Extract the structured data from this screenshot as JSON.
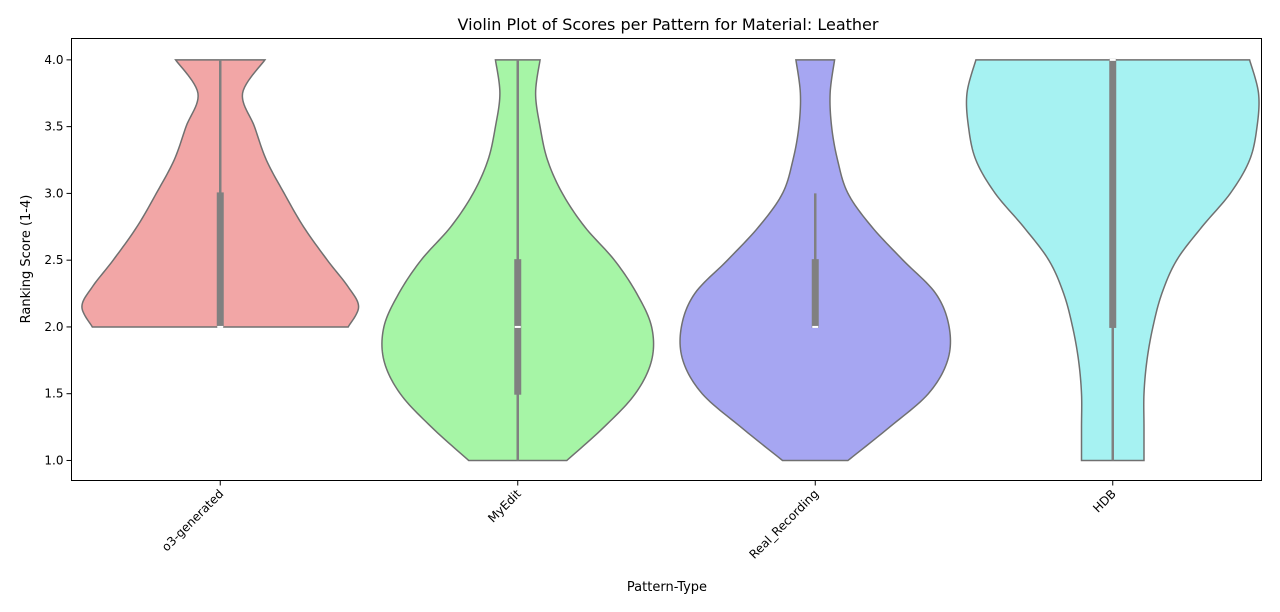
{
  "chart_data": {
    "type": "violin",
    "title": "Violin Plot of Scores per Pattern for Material: Leather",
    "xlabel": "Pattern-Type",
    "ylabel": "Ranking Score (1-4)",
    "ylim": [
      0.85,
      4.16
    ],
    "yticks": [
      "1.0",
      "1.5",
      "2.0",
      "2.5",
      "3.0",
      "3.5",
      "4.0"
    ],
    "categories": [
      "o3-generated",
      "MyEdit",
      "Real_Recording",
      "HDB"
    ],
    "colors": [
      "#f2a6a6",
      "#a6f5a6",
      "#a6a6f2",
      "#a6f2f2"
    ],
    "edge_color": "#707070",
    "box_color": "#808080",
    "violins": [
      {
        "name": "o3-generated",
        "median": 2.0,
        "q1": 2.0,
        "q3": 3.0,
        "whisker_low": 2.0,
        "whisker_high": 4.0,
        "density": [
          [
            2.0,
            0.86
          ],
          [
            2.15,
            0.93
          ],
          [
            2.3,
            0.86
          ],
          [
            2.5,
            0.72
          ],
          [
            2.75,
            0.56
          ],
          [
            3.0,
            0.43
          ],
          [
            3.25,
            0.31
          ],
          [
            3.5,
            0.23
          ],
          [
            3.75,
            0.15
          ],
          [
            4.0,
            0.3
          ]
        ]
      },
      {
        "name": "MyEdit",
        "median": 2.0,
        "q1": 1.5,
        "q3": 2.5,
        "whisker_low": 1.0,
        "whisker_high": 4.0,
        "density": [
          [
            1.0,
            0.33
          ],
          [
            1.25,
            0.58
          ],
          [
            1.5,
            0.79
          ],
          [
            1.75,
            0.9
          ],
          [
            2.0,
            0.9
          ],
          [
            2.25,
            0.8
          ],
          [
            2.5,
            0.65
          ],
          [
            2.75,
            0.45
          ],
          [
            3.0,
            0.3
          ],
          [
            3.25,
            0.2
          ],
          [
            3.5,
            0.15
          ],
          [
            3.75,
            0.12
          ],
          [
            4.0,
            0.15
          ]
        ]
      },
      {
        "name": "Real_Recording",
        "median": 2.0,
        "q1": 2.0,
        "q3": 2.5,
        "whisker_low": 2.0,
        "whisker_high": 3.0,
        "density": [
          [
            1.0,
            0.22
          ],
          [
            1.25,
            0.5
          ],
          [
            1.5,
            0.76
          ],
          [
            1.75,
            0.89
          ],
          [
            2.0,
            0.9
          ],
          [
            2.25,
            0.81
          ],
          [
            2.5,
            0.59
          ],
          [
            2.75,
            0.38
          ],
          [
            3.0,
            0.22
          ],
          [
            3.25,
            0.15
          ],
          [
            3.5,
            0.11
          ],
          [
            3.75,
            0.1
          ],
          [
            4.0,
            0.13
          ]
        ]
      },
      {
        "name": "HDB",
        "median": 4.0,
        "q1": 2.0,
        "q3": 4.0,
        "whisker_low": 1.0,
        "whisker_high": 4.0,
        "density": [
          [
            1.0,
            0.21
          ],
          [
            1.25,
            0.21
          ],
          [
            1.5,
            0.21
          ],
          [
            1.75,
            0.23
          ],
          [
            2.0,
            0.27
          ],
          [
            2.25,
            0.33
          ],
          [
            2.5,
            0.43
          ],
          [
            2.75,
            0.6
          ],
          [
            3.0,
            0.79
          ],
          [
            3.25,
            0.92
          ],
          [
            3.5,
            0.97
          ],
          [
            3.75,
            0.98
          ],
          [
            4.0,
            0.92
          ]
        ]
      }
    ]
  }
}
